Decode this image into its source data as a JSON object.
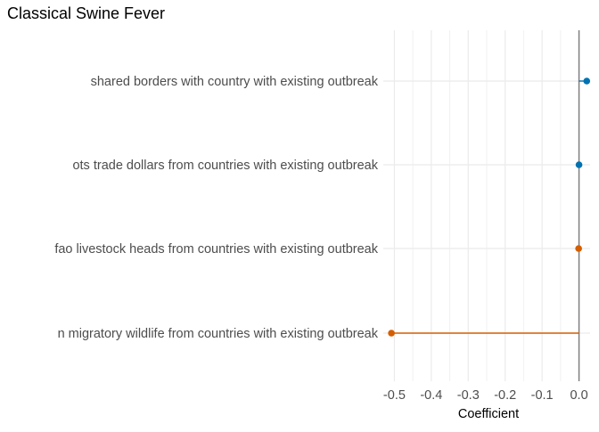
{
  "chart_data": {
    "type": "lollipop",
    "title": "Classical Swine Fever",
    "xlabel": "Coefficient",
    "ylabel": "",
    "xlim": [
      -0.53,
      0.03
    ],
    "xticks": [
      -0.5,
      -0.4,
      -0.3,
      -0.2,
      -0.1,
      0.0
    ],
    "xtick_labels": [
      "-0.5",
      "-0.4",
      "-0.3",
      "-0.2",
      "-0.1",
      "0.0"
    ],
    "grid": true,
    "reference_line": 0,
    "categories": [
      "shared borders with country with existing outbreak",
      "ots trade dollars from countries with existing outbreak",
      "fao livestock heads from countries with existing outbreak",
      "n migratory wildlife from countries with existing outbreak"
    ],
    "values": [
      0.021,
      0.0,
      -0.001,
      -0.508
    ],
    "point_colors": [
      "#0072B2",
      "#0072B2",
      "#D55E00",
      "#D55E00"
    ]
  }
}
